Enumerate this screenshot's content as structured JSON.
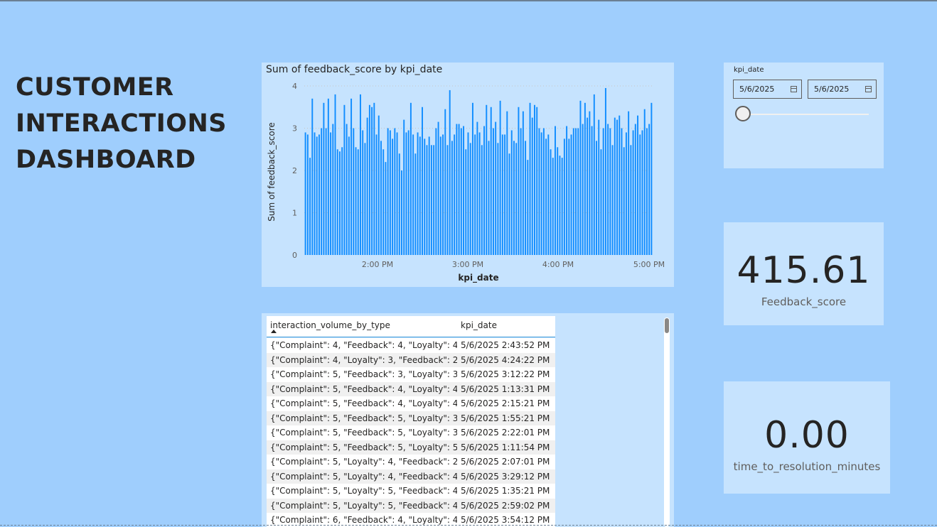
{
  "dashboard": {
    "title_lines": [
      "CUSTOMER",
      "INTERACTIONS",
      "DASHBOARD"
    ]
  },
  "colors": {
    "background": "#9fcefd",
    "card": "#c6e3fe",
    "bar": "#118dff",
    "text": "#252423"
  },
  "chart_data": {
    "type": "bar",
    "title": "Sum of feedback_score by kpi_date",
    "xlabel": "kpi_date",
    "ylabel": "Sum of feedback_score",
    "ylim": [
      0,
      4
    ],
    "yticks": [
      "0",
      "1",
      "2",
      "3",
      "4"
    ],
    "xticks": [
      "2:00 PM",
      "3:00 PM",
      "4:00 PM",
      "5:00 PM"
    ],
    "x_range": [
      "1:10 PM",
      "5:02 PM"
    ],
    "grid": true,
    "values": [
      2.9,
      2.85,
      2.3,
      3.7,
      2.9,
      2.8,
      2.85,
      3.0,
      3.6,
      3.0,
      3.7,
      2.9,
      3.1,
      3.8,
      2.5,
      2.45,
      2.55,
      3.55,
      3.1,
      2.8,
      3.7,
      3.0,
      2.55,
      2.5,
      3.8,
      2.95,
      2.65,
      3.25,
      3.55,
      3.5,
      3.6,
      2.85,
      3.3,
      2.7,
      2.5,
      2.2,
      3.0,
      2.95,
      2.75,
      3.0,
      2.9,
      2.4,
      2.0,
      3.2,
      2.9,
      2.95,
      3.6,
      2.85,
      2.4,
      2.9,
      2.8,
      3.5,
      2.75,
      2.6,
      2.8,
      2.6,
      2.6,
      3.0,
      3.15,
      2.8,
      2.85,
      3.45,
      2.6,
      3.9,
      2.7,
      2.85,
      3.1,
      3.1,
      3.0,
      3.05,
      2.5,
      2.9,
      2.65,
      3.6,
      2.85,
      3.15,
      2.9,
      2.6,
      3.05,
      3.55,
      2.7,
      3.5,
      3.0,
      3.15,
      2.65,
      3.65,
      2.85,
      2.85,
      3.4,
      2.4,
      2.95,
      2.7,
      2.65,
      3.5,
      3.0,
      3.4,
      2.7,
      2.25,
      3.6,
      3.25,
      3.55,
      3.5,
      3.0,
      2.9,
      3.0,
      2.75,
      2.85,
      2.5,
      2.3,
      3.05,
      2.55,
      2.35,
      2.3,
      2.75,
      3.05,
      2.75,
      2.85,
      3.0,
      3.0,
      3.0,
      3.65,
      3.1,
      3.6,
      3.25,
      3.4,
      3.05,
      3.8,
      2.7,
      3.2,
      2.5,
      3.0,
      3.95,
      3.1,
      3.0,
      2.6,
      3.25,
      3.2,
      3.3,
      3.0,
      2.55,
      2.9,
      3.4,
      2.6,
      2.95,
      3.1,
      3.3,
      2.85,
      2.95,
      3.45,
      3.0,
      3.1,
      3.6
    ]
  },
  "slicer": {
    "label": "kpi_date",
    "start_date": "5/6/2025",
    "end_date": "5/6/2025",
    "slider_position": 0
  },
  "kpis": [
    {
      "value": "415.61",
      "label": "Feedback_score"
    },
    {
      "value": "0.00",
      "label": "time_to_resolution_minutes"
    }
  ],
  "table": {
    "columns": [
      "interaction_volume_by_type",
      "kpi_date"
    ],
    "rows": [
      [
        "{\"Complaint\": 4, \"Feedback\": 4, \"Loyalty\": 4}",
        "5/6/2025 2:43:52 PM"
      ],
      [
        "{\"Complaint\": 4, \"Loyalty\": 3, \"Feedback\": 2}",
        "5/6/2025 4:24:22 PM"
      ],
      [
        "{\"Complaint\": 5, \"Feedback\": 3, \"Loyalty\": 3}",
        "5/6/2025 3:12:22 PM"
      ],
      [
        "{\"Complaint\": 5, \"Feedback\": 4, \"Loyalty\": 4}",
        "5/6/2025 1:13:31 PM"
      ],
      [
        "{\"Complaint\": 5, \"Feedback\": 4, \"Loyalty\": 4}",
        "5/6/2025 2:15:21 PM"
      ],
      [
        "{\"Complaint\": 5, \"Feedback\": 5, \"Loyalty\": 3}",
        "5/6/2025 1:55:21 PM"
      ],
      [
        "{\"Complaint\": 5, \"Feedback\": 5, \"Loyalty\": 3}",
        "5/6/2025 2:22:01 PM"
      ],
      [
        "{\"Complaint\": 5, \"Feedback\": 5, \"Loyalty\": 5}",
        "5/6/2025 1:11:54 PM"
      ],
      [
        "{\"Complaint\": 5, \"Loyalty\": 4, \"Feedback\": 2}",
        "5/6/2025 2:07:01 PM"
      ],
      [
        "{\"Complaint\": 5, \"Loyalty\": 4, \"Feedback\": 4}",
        "5/6/2025 3:29:12 PM"
      ],
      [
        "{\"Complaint\": 5, \"Loyalty\": 5, \"Feedback\": 4}",
        "5/6/2025 1:35:21 PM"
      ],
      [
        "{\"Complaint\": 5, \"Loyalty\": 5, \"Feedback\": 4}",
        "5/6/2025 2:59:02 PM"
      ],
      [
        "{\"Complaint\": 6, \"Feedback\": 4, \"Loyalty\": 4}",
        "5/6/2025 3:54:12 PM"
      ]
    ]
  }
}
